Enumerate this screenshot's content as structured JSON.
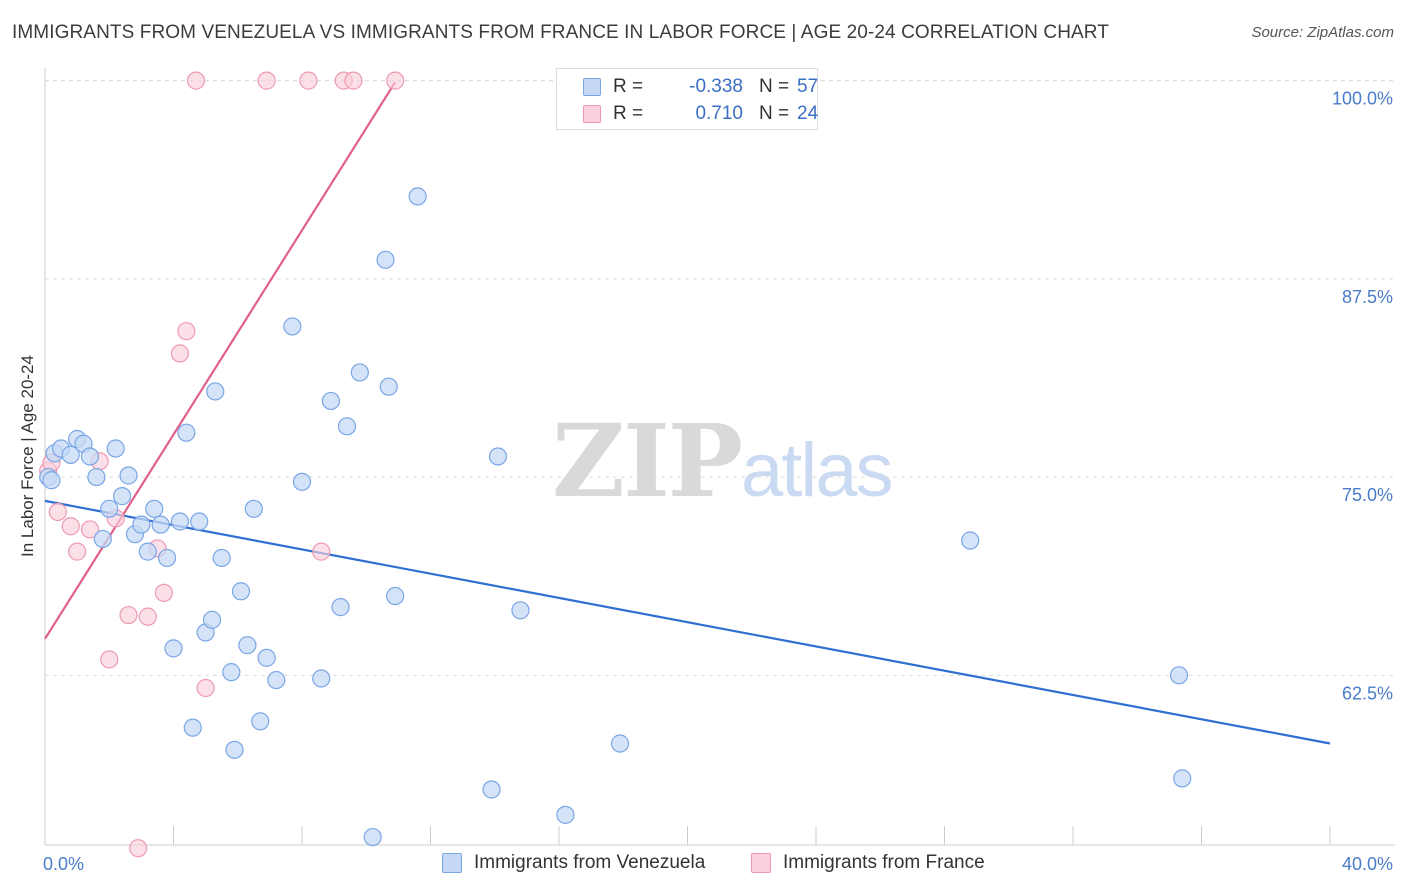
{
  "title": "IMMIGRANTS FROM VENEZUELA VS IMMIGRANTS FROM FRANCE IN LABOR FORCE | AGE 20-24 CORRELATION CHART",
  "source": "Source: ZipAtlas.com",
  "watermark": {
    "zip": "ZIP",
    "atlas": "atlas"
  },
  "stats": [
    {
      "r_label": "R =",
      "r_value": "-0.338",
      "n_label": "N =",
      "n_value": "57",
      "fill": "#c5d9f6",
      "stroke": "#7aa6e6"
    },
    {
      "r_label": "R =",
      "r_value": "0.710",
      "n_label": "N =",
      "n_value": "24",
      "fill": "#f9d0dc",
      "stroke": "#ee99b0"
    }
  ],
  "legend": [
    {
      "label": "Immigrants from Venezuela",
      "fill": "#c5d9f6",
      "stroke": "#7aa6e6"
    },
    {
      "label": "Immigrants from France",
      "fill": "#f9d0dc",
      "stroke": "#ee99b0"
    }
  ],
  "chart_data": {
    "type": "scatter",
    "title": "IMMIGRANTS FROM VENEZUELA VS IMMIGRANTS FROM FRANCE IN LABOR FORCE | AGE 20-24 CORRELATION CHART",
    "xlabel": "",
    "ylabel": "In Labor Force | Age 20-24",
    "xlim": [
      0,
      40
    ],
    "ylim": [
      51.8,
      101.3
    ],
    "x_tick_labels": [
      "0.0%",
      "40.0%"
    ],
    "y_ticks": [
      {
        "value": 100.0,
        "label": "100.0%"
      },
      {
        "value": 87.5,
        "label": "87.5%"
      },
      {
        "value": 75.0,
        "label": "75.0%"
      },
      {
        "value": 62.5,
        "label": "62.5%"
      }
    ],
    "grid": true,
    "legend_position": "bottom",
    "series": [
      {
        "name": "Immigrants from Venezuela",
        "color": "#7aa6e6",
        "fill": "#c5d9f6",
        "line_color": "#2f6fd1",
        "trend": {
          "x": [
            0,
            40
          ],
          "y": [
            73.5,
            58.2
          ]
        },
        "points": [
          [
            0.1,
            75.0
          ],
          [
            0.3,
            76.5
          ],
          [
            0.5,
            76.8
          ],
          [
            0.8,
            76.4
          ],
          [
            1.0,
            77.4
          ],
          [
            1.2,
            77.1
          ],
          [
            1.4,
            76.3
          ],
          [
            1.6,
            75.0
          ],
          [
            1.8,
            71.1
          ],
          [
            2.0,
            73.0
          ],
          [
            2.2,
            76.8
          ],
          [
            2.4,
            73.8
          ],
          [
            2.6,
            75.1
          ],
          [
            2.8,
            71.4
          ],
          [
            3.0,
            72.0
          ],
          [
            3.2,
            70.3
          ],
          [
            3.4,
            73.0
          ],
          [
            3.6,
            72.0
          ],
          [
            3.8,
            69.9
          ],
          [
            4.0,
            64.2
          ],
          [
            4.2,
            72.2
          ],
          [
            4.4,
            77.8
          ],
          [
            4.6,
            59.2
          ],
          [
            4.8,
            72.2
          ],
          [
            5.0,
            65.2
          ],
          [
            5.2,
            66.0
          ],
          [
            5.3,
            80.4
          ],
          [
            5.5,
            69.9
          ],
          [
            5.8,
            62.7
          ],
          [
            5.9,
            57.8
          ],
          [
            6.1,
            67.8
          ],
          [
            6.3,
            64.4
          ],
          [
            6.5,
            73.0
          ],
          [
            6.7,
            59.6
          ],
          [
            6.9,
            63.6
          ],
          [
            7.2,
            62.2
          ],
          [
            7.7,
            84.5
          ],
          [
            8.0,
            74.7
          ],
          [
            8.6,
            62.3
          ],
          [
            8.9,
            79.8
          ],
          [
            9.2,
            66.8
          ],
          [
            9.4,
            78.2
          ],
          [
            9.8,
            81.6
          ],
          [
            10.2,
            52.3
          ],
          [
            10.6,
            88.7
          ],
          [
            10.7,
            80.7
          ],
          [
            10.9,
            67.5
          ],
          [
            11.6,
            92.7
          ],
          [
            13.9,
            55.3
          ],
          [
            14.1,
            76.3
          ],
          [
            14.8,
            66.6
          ],
          [
            16.2,
            53.7
          ],
          [
            17.9,
            58.2
          ],
          [
            28.8,
            71.0
          ],
          [
            35.3,
            62.5
          ],
          [
            35.4,
            56.0
          ],
          [
            0.2,
            74.8
          ]
        ]
      },
      {
        "name": "Immigrants from France",
        "color": "#ee99b0",
        "fill": "#f9d0dc",
        "line_color": "#e0608a",
        "trend": {
          "x": [
            0,
            10.9
          ],
          "y": [
            64.8,
            99.9
          ]
        },
        "points": [
          [
            0.1,
            75.4
          ],
          [
            0.2,
            75.9
          ],
          [
            0.4,
            72.8
          ],
          [
            0.8,
            71.9
          ],
          [
            1.0,
            70.3
          ],
          [
            1.4,
            71.7
          ],
          [
            1.7,
            76.0
          ],
          [
            2.0,
            63.5
          ],
          [
            2.2,
            72.4
          ],
          [
            2.6,
            66.3
          ],
          [
            2.9,
            51.6
          ],
          [
            3.2,
            66.2
          ],
          [
            3.5,
            70.5
          ],
          [
            3.7,
            67.7
          ],
          [
            4.2,
            82.8
          ],
          [
            4.4,
            84.2
          ],
          [
            4.7,
            100.0
          ],
          [
            5.0,
            61.7
          ],
          [
            6.9,
            100.0
          ],
          [
            8.2,
            100.0
          ],
          [
            8.6,
            70.3
          ],
          [
            9.3,
            100.0
          ],
          [
            9.6,
            100.0
          ],
          [
            10.9,
            100.0
          ]
        ]
      }
    ]
  }
}
